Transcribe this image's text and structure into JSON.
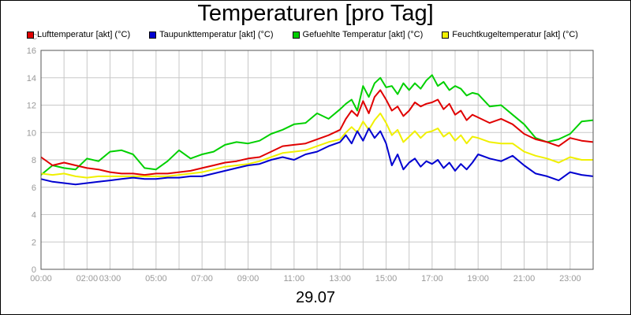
{
  "chart_data": {
    "type": "line",
    "title": "Temperaturen [pro Tag]",
    "date_label": "29.07",
    "y_unit": "°C",
    "ylim": [
      0,
      16
    ],
    "yticks": [
      0,
      2,
      4,
      6,
      8,
      10,
      12,
      14,
      16
    ],
    "xlim_hours": [
      0,
      24
    ],
    "xticks": [
      {
        "h": 0,
        "label": "00:00"
      },
      {
        "h": 2,
        "label": "02:00"
      },
      {
        "h": 3,
        "label": "03:00"
      },
      {
        "h": 5,
        "label": "05:00"
      },
      {
        "h": 7,
        "label": "07:00"
      },
      {
        "h": 9,
        "label": "09:00"
      },
      {
        "h": 11,
        "label": "11:00"
      },
      {
        "h": 13,
        "label": "13:00"
      },
      {
        "h": 15,
        "label": "15:00"
      },
      {
        "h": 17,
        "label": "17:00"
      },
      {
        "h": 19,
        "label": "19:00"
      },
      {
        "h": 21,
        "label": "21:00"
      },
      {
        "h": 23,
        "label": "23:00"
      }
    ],
    "grid": true,
    "legend_position": "top",
    "series": [
      {
        "name": "Lufttemperatur [akt] (°C)",
        "color": "#e00000",
        "x": [
          0,
          0.5,
          1,
          1.5,
          2,
          2.5,
          3,
          3.5,
          4,
          4.5,
          5,
          5.5,
          6,
          6.5,
          7,
          7.5,
          8,
          8.5,
          9,
          9.5,
          10,
          10.5,
          11,
          11.5,
          12,
          12.5,
          13,
          13.25,
          13.5,
          13.75,
          14,
          14.25,
          14.5,
          14.75,
          15,
          15.25,
          15.5,
          15.75,
          16,
          16.25,
          16.5,
          16.75,
          17,
          17.25,
          17.5,
          17.75,
          18,
          18.25,
          18.5,
          18.75,
          19,
          19.5,
          20,
          20.5,
          21,
          21.5,
          22,
          22.5,
          23,
          23.5,
          24
        ],
        "values": [
          8.2,
          7.6,
          7.8,
          7.6,
          7.4,
          7.3,
          7.1,
          7.0,
          7.0,
          6.9,
          7.0,
          7.0,
          7.1,
          7.2,
          7.4,
          7.6,
          7.8,
          7.9,
          8.1,
          8.2,
          8.6,
          9.0,
          9.1,
          9.2,
          9.5,
          9.8,
          10.2,
          11.0,
          11.6,
          11.2,
          12.3,
          11.4,
          12.6,
          13.1,
          12.4,
          11.6,
          11.9,
          11.2,
          11.6,
          12.2,
          11.9,
          12.1,
          12.2,
          12.4,
          11.7,
          12.1,
          11.3,
          11.6,
          10.9,
          11.3,
          11.1,
          10.7,
          11.0,
          10.6,
          9.9,
          9.5,
          9.3,
          9.0,
          9.6,
          9.4,
          9.3
        ]
      },
      {
        "name": "Taupunkttemperatur [akt] (°C)",
        "color": "#0000d0",
        "x": [
          0,
          0.5,
          1,
          1.5,
          2,
          2.5,
          3,
          3.5,
          4,
          4.5,
          5,
          5.5,
          6,
          6.5,
          7,
          7.5,
          8,
          8.5,
          9,
          9.5,
          10,
          10.5,
          11,
          11.5,
          12,
          12.5,
          13,
          13.25,
          13.5,
          13.75,
          14,
          14.25,
          14.5,
          14.75,
          15,
          15.25,
          15.5,
          15.75,
          16,
          16.25,
          16.5,
          16.75,
          17,
          17.25,
          17.5,
          17.75,
          18,
          18.25,
          18.5,
          18.75,
          19,
          19.5,
          20,
          20.5,
          21,
          21.5,
          22,
          22.5,
          23,
          23.5,
          24
        ],
        "values": [
          6.6,
          6.4,
          6.3,
          6.2,
          6.3,
          6.4,
          6.5,
          6.6,
          6.7,
          6.6,
          6.6,
          6.7,
          6.7,
          6.8,
          6.8,
          7.0,
          7.2,
          7.4,
          7.6,
          7.7,
          8.0,
          8.2,
          8.0,
          8.4,
          8.6,
          9.0,
          9.3,
          9.8,
          9.2,
          10.1,
          9.4,
          10.3,
          9.6,
          10.1,
          9.2,
          7.6,
          8.4,
          7.3,
          7.8,
          8.1,
          7.5,
          7.9,
          7.7,
          8.0,
          7.4,
          7.8,
          7.2,
          7.7,
          7.3,
          7.8,
          8.4,
          8.1,
          7.9,
          8.3,
          7.6,
          7.0,
          6.8,
          6.5,
          7.1,
          6.9,
          6.8
        ]
      },
      {
        "name": "Gefuehlte Temperatur [akt] (°C)",
        "color": "#00d000",
        "x": [
          0,
          0.5,
          1,
          1.5,
          2,
          2.5,
          3,
          3.5,
          4,
          4.5,
          5,
          5.5,
          6,
          6.5,
          7,
          7.5,
          8,
          8.5,
          9,
          9.5,
          10,
          10.5,
          11,
          11.5,
          12,
          12.5,
          13,
          13.25,
          13.5,
          13.75,
          14,
          14.25,
          14.5,
          14.75,
          15,
          15.25,
          15.5,
          15.75,
          16,
          16.25,
          16.5,
          16.75,
          17,
          17.25,
          17.5,
          17.75,
          18,
          18.25,
          18.5,
          18.75,
          19,
          19.5,
          20,
          20.5,
          21,
          21.5,
          22,
          22.5,
          23,
          23.5,
          24
        ],
        "values": [
          6.9,
          7.6,
          7.4,
          7.3,
          8.1,
          7.9,
          8.6,
          8.7,
          8.4,
          7.4,
          7.3,
          7.9,
          8.7,
          8.1,
          8.4,
          8.6,
          9.1,
          9.3,
          9.2,
          9.4,
          9.9,
          10.2,
          10.6,
          10.7,
          11.4,
          11.0,
          11.7,
          12.1,
          12.4,
          11.6,
          13.4,
          12.6,
          13.6,
          14.0,
          13.3,
          13.4,
          12.8,
          13.6,
          13.1,
          13.6,
          13.2,
          13.8,
          14.2,
          13.4,
          13.7,
          13.1,
          13.4,
          13.2,
          12.7,
          12.9,
          12.8,
          11.9,
          12.0,
          11.3,
          10.6,
          9.6,
          9.3,
          9.5,
          9.9,
          10.8,
          10.9
        ]
      },
      {
        "name": "Feuchtkugeltemperatur [akt] (°C)",
        "color": "#f0f000",
        "x": [
          0,
          0.5,
          1,
          1.5,
          2,
          2.5,
          3,
          3.5,
          4,
          4.5,
          5,
          5.5,
          6,
          6.5,
          7,
          7.5,
          8,
          8.5,
          9,
          9.5,
          10,
          10.5,
          11,
          11.5,
          12,
          12.5,
          13,
          13.25,
          13.5,
          13.75,
          14,
          14.25,
          14.5,
          14.75,
          15,
          15.25,
          15.5,
          15.75,
          16,
          16.25,
          16.5,
          16.75,
          17,
          17.25,
          17.5,
          17.75,
          18,
          18.25,
          18.5,
          18.75,
          19,
          19.5,
          20,
          20.5,
          21,
          21.5,
          22,
          22.5,
          23,
          23.5,
          24
        ],
        "values": [
          7.0,
          6.9,
          7.0,
          6.8,
          6.7,
          6.8,
          6.8,
          6.8,
          6.8,
          6.8,
          6.8,
          6.8,
          6.9,
          7.0,
          7.1,
          7.3,
          7.5,
          7.6,
          7.7,
          7.9,
          8.2,
          8.5,
          8.6,
          8.7,
          9.0,
          9.3,
          9.5,
          10.0,
          10.4,
          10.0,
          10.8,
          10.2,
          10.9,
          11.4,
          10.7,
          9.8,
          10.2,
          9.3,
          9.7,
          10.1,
          9.6,
          10.0,
          10.1,
          10.3,
          9.7,
          10.0,
          9.4,
          9.8,
          9.2,
          9.7,
          9.6,
          9.3,
          9.2,
          9.2,
          8.6,
          8.3,
          8.1,
          7.8,
          8.2,
          8.0,
          8.0
        ]
      }
    ]
  }
}
